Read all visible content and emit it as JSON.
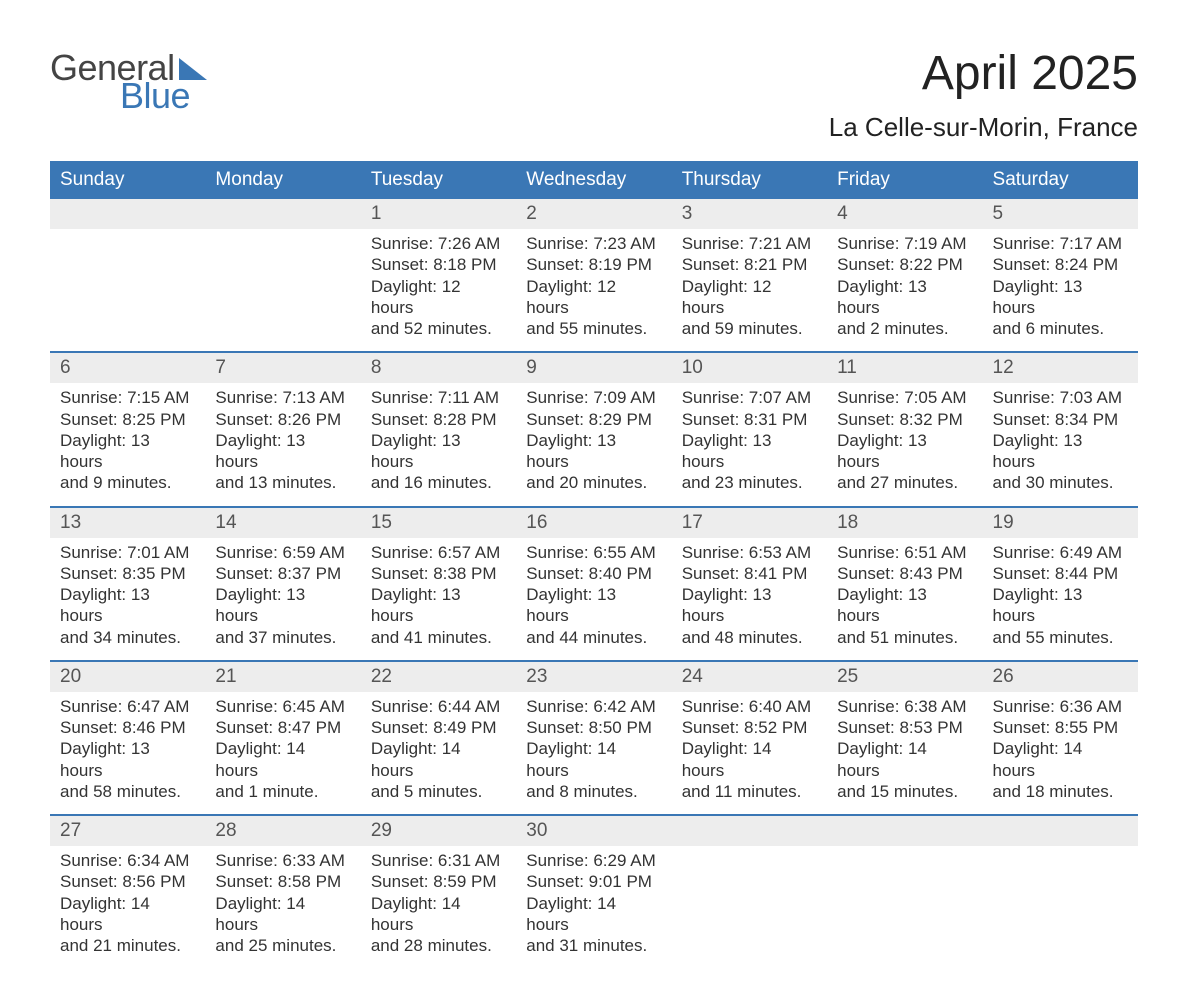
{
  "logo": {
    "text_top": "General",
    "text_bottom": "Blue",
    "color_top": "#444444",
    "color_bottom": "#3a77b5",
    "triangle_color": "#3a77b5"
  },
  "title": "April 2025",
  "location": "La Celle-sur-Morin, France",
  "colors": {
    "header_bg": "#3a77b5",
    "header_text": "#ffffff",
    "daynum_bg": "#ededed",
    "daynum_text": "#555555",
    "body_text": "#333333",
    "week_border": "#3a77b5",
    "page_bg": "#ffffff"
  },
  "fonts": {
    "title_size_pt": 36,
    "location_size_pt": 20,
    "header_size_pt": 14,
    "daynum_size_pt": 14,
    "body_size_pt": 13
  },
  "day_headers": [
    "Sunday",
    "Monday",
    "Tuesday",
    "Wednesday",
    "Thursday",
    "Friday",
    "Saturday"
  ],
  "weeks": [
    {
      "days": [
        {
          "num": "",
          "lines": [
            "",
            "",
            "",
            ""
          ]
        },
        {
          "num": "",
          "lines": [
            "",
            "",
            "",
            ""
          ]
        },
        {
          "num": "1",
          "lines": [
            "Sunrise: 7:26 AM",
            "Sunset: 8:18 PM",
            "Daylight: 12 hours",
            "and 52 minutes."
          ]
        },
        {
          "num": "2",
          "lines": [
            "Sunrise: 7:23 AM",
            "Sunset: 8:19 PM",
            "Daylight: 12 hours",
            "and 55 minutes."
          ]
        },
        {
          "num": "3",
          "lines": [
            "Sunrise: 7:21 AM",
            "Sunset: 8:21 PM",
            "Daylight: 12 hours",
            "and 59 minutes."
          ]
        },
        {
          "num": "4",
          "lines": [
            "Sunrise: 7:19 AM",
            "Sunset: 8:22 PM",
            "Daylight: 13 hours",
            "and 2 minutes."
          ]
        },
        {
          "num": "5",
          "lines": [
            "Sunrise: 7:17 AM",
            "Sunset: 8:24 PM",
            "Daylight: 13 hours",
            "and 6 minutes."
          ]
        }
      ]
    },
    {
      "days": [
        {
          "num": "6",
          "lines": [
            "Sunrise: 7:15 AM",
            "Sunset: 8:25 PM",
            "Daylight: 13 hours",
            "and 9 minutes."
          ]
        },
        {
          "num": "7",
          "lines": [
            "Sunrise: 7:13 AM",
            "Sunset: 8:26 PM",
            "Daylight: 13 hours",
            "and 13 minutes."
          ]
        },
        {
          "num": "8",
          "lines": [
            "Sunrise: 7:11 AM",
            "Sunset: 8:28 PM",
            "Daylight: 13 hours",
            "and 16 minutes."
          ]
        },
        {
          "num": "9",
          "lines": [
            "Sunrise: 7:09 AM",
            "Sunset: 8:29 PM",
            "Daylight: 13 hours",
            "and 20 minutes."
          ]
        },
        {
          "num": "10",
          "lines": [
            "Sunrise: 7:07 AM",
            "Sunset: 8:31 PM",
            "Daylight: 13 hours",
            "and 23 minutes."
          ]
        },
        {
          "num": "11",
          "lines": [
            "Sunrise: 7:05 AM",
            "Sunset: 8:32 PM",
            "Daylight: 13 hours",
            "and 27 minutes."
          ]
        },
        {
          "num": "12",
          "lines": [
            "Sunrise: 7:03 AM",
            "Sunset: 8:34 PM",
            "Daylight: 13 hours",
            "and 30 minutes."
          ]
        }
      ]
    },
    {
      "days": [
        {
          "num": "13",
          "lines": [
            "Sunrise: 7:01 AM",
            "Sunset: 8:35 PM",
            "Daylight: 13 hours",
            "and 34 minutes."
          ]
        },
        {
          "num": "14",
          "lines": [
            "Sunrise: 6:59 AM",
            "Sunset: 8:37 PM",
            "Daylight: 13 hours",
            "and 37 minutes."
          ]
        },
        {
          "num": "15",
          "lines": [
            "Sunrise: 6:57 AM",
            "Sunset: 8:38 PM",
            "Daylight: 13 hours",
            "and 41 minutes."
          ]
        },
        {
          "num": "16",
          "lines": [
            "Sunrise: 6:55 AM",
            "Sunset: 8:40 PM",
            "Daylight: 13 hours",
            "and 44 minutes."
          ]
        },
        {
          "num": "17",
          "lines": [
            "Sunrise: 6:53 AM",
            "Sunset: 8:41 PM",
            "Daylight: 13 hours",
            "and 48 minutes."
          ]
        },
        {
          "num": "18",
          "lines": [
            "Sunrise: 6:51 AM",
            "Sunset: 8:43 PM",
            "Daylight: 13 hours",
            "and 51 minutes."
          ]
        },
        {
          "num": "19",
          "lines": [
            "Sunrise: 6:49 AM",
            "Sunset: 8:44 PM",
            "Daylight: 13 hours",
            "and 55 minutes."
          ]
        }
      ]
    },
    {
      "days": [
        {
          "num": "20",
          "lines": [
            "Sunrise: 6:47 AM",
            "Sunset: 8:46 PM",
            "Daylight: 13 hours",
            "and 58 minutes."
          ]
        },
        {
          "num": "21",
          "lines": [
            "Sunrise: 6:45 AM",
            "Sunset: 8:47 PM",
            "Daylight: 14 hours",
            "and 1 minute."
          ]
        },
        {
          "num": "22",
          "lines": [
            "Sunrise: 6:44 AM",
            "Sunset: 8:49 PM",
            "Daylight: 14 hours",
            "and 5 minutes."
          ]
        },
        {
          "num": "23",
          "lines": [
            "Sunrise: 6:42 AM",
            "Sunset: 8:50 PM",
            "Daylight: 14 hours",
            "and 8 minutes."
          ]
        },
        {
          "num": "24",
          "lines": [
            "Sunrise: 6:40 AM",
            "Sunset: 8:52 PM",
            "Daylight: 14 hours",
            "and 11 minutes."
          ]
        },
        {
          "num": "25",
          "lines": [
            "Sunrise: 6:38 AM",
            "Sunset: 8:53 PM",
            "Daylight: 14 hours",
            "and 15 minutes."
          ]
        },
        {
          "num": "26",
          "lines": [
            "Sunrise: 6:36 AM",
            "Sunset: 8:55 PM",
            "Daylight: 14 hours",
            "and 18 minutes."
          ]
        }
      ]
    },
    {
      "days": [
        {
          "num": "27",
          "lines": [
            "Sunrise: 6:34 AM",
            "Sunset: 8:56 PM",
            "Daylight: 14 hours",
            "and 21 minutes."
          ]
        },
        {
          "num": "28",
          "lines": [
            "Sunrise: 6:33 AM",
            "Sunset: 8:58 PM",
            "Daylight: 14 hours",
            "and 25 minutes."
          ]
        },
        {
          "num": "29",
          "lines": [
            "Sunrise: 6:31 AM",
            "Sunset: 8:59 PM",
            "Daylight: 14 hours",
            "and 28 minutes."
          ]
        },
        {
          "num": "30",
          "lines": [
            "Sunrise: 6:29 AM",
            "Sunset: 9:01 PM",
            "Daylight: 14 hours",
            "and 31 minutes."
          ]
        },
        {
          "num": "",
          "lines": [
            "",
            "",
            "",
            ""
          ]
        },
        {
          "num": "",
          "lines": [
            "",
            "",
            "",
            ""
          ]
        },
        {
          "num": "",
          "lines": [
            "",
            "",
            "",
            ""
          ]
        }
      ]
    }
  ]
}
